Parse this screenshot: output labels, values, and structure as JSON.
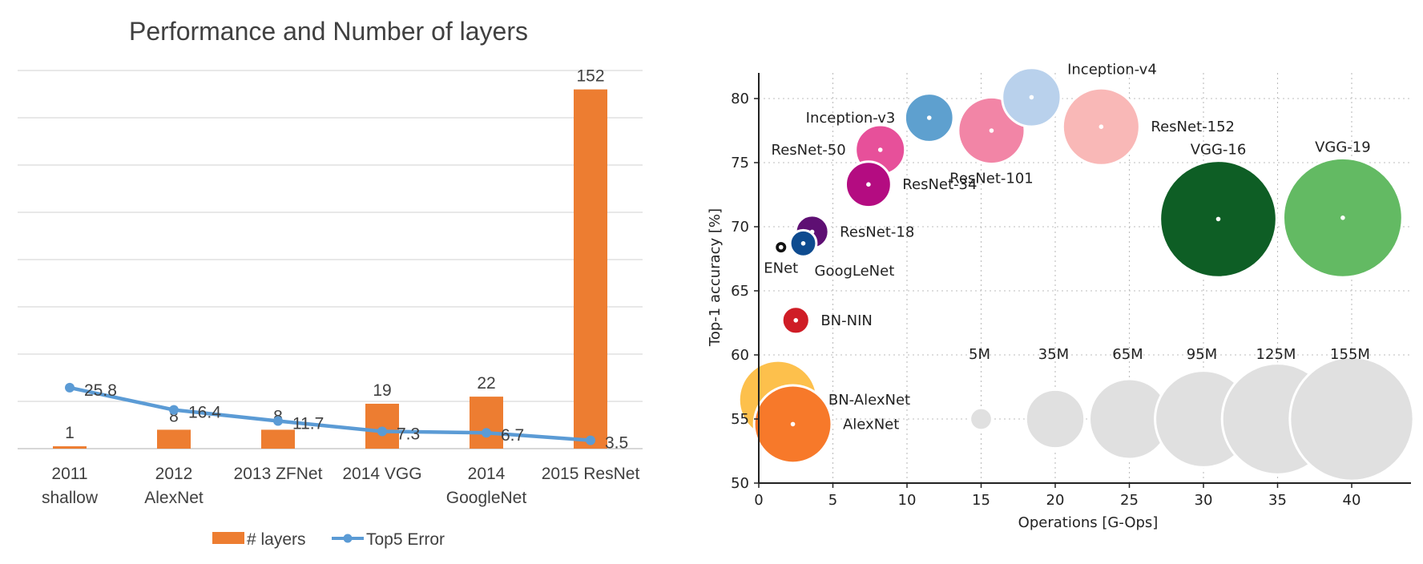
{
  "chart_data": [
    {
      "type": "bar",
      "title": "Performance and Number of layers",
      "categories": [
        [
          "2011",
          "shallow"
        ],
        [
          "2012",
          "AlexNet"
        ],
        [
          "2013 ZFNet"
        ],
        [
          "2014 VGG"
        ],
        [
          "2014",
          "GoogleNet"
        ],
        [
          "2015 ResNet"
        ]
      ],
      "ylim": [
        0,
        160
      ],
      "grid": true,
      "legend_position": "bottom",
      "colors": {
        "bars": "#ED7D31",
        "line": "#5B9BD5",
        "grid": "#D9D9D9",
        "axis": "#BFBFBF"
      },
      "series": [
        {
          "name": "# layers",
          "type": "bar",
          "values": [
            1,
            8,
            8,
            19,
            22,
            152
          ],
          "labels": [
            "1",
            "8",
            "8",
            "19",
            "22",
            "152"
          ]
        },
        {
          "name": "Top5 Error",
          "type": "line",
          "values": [
            25.8,
            16.4,
            11.7,
            7.3,
            6.7,
            3.5
          ],
          "labels": [
            "25.8",
            "16.4",
            "11.7",
            "7.3",
            "6.7",
            "3.5"
          ]
        }
      ]
    },
    {
      "type": "scatter",
      "xlabel": "Operations [G-Ops]",
      "ylabel": "Top-1 accuracy [%]",
      "xlim": [
        0,
        44
      ],
      "ylim": [
        50,
        82
      ],
      "xticks": [
        0,
        5,
        10,
        15,
        20,
        25,
        30,
        35,
        40
      ],
      "yticks": [
        50,
        55,
        60,
        65,
        70,
        75,
        80
      ],
      "grid": true,
      "points": [
        {
          "name": "Inception-v4",
          "x": 18.4,
          "y": 80.1,
          "params_m": 35,
          "color": "#B9D1EC",
          "label_pos": "right-above"
        },
        {
          "name": "Inception-v3",
          "x": 11.5,
          "y": 78.5,
          "params_m": 24,
          "color": "#5EA0CF",
          "label_pos": "left"
        },
        {
          "name": "ResNet-101",
          "x": 15.7,
          "y": 77.5,
          "params_m": 45,
          "color": "#F285A6",
          "label_pos": "below"
        },
        {
          "name": "ResNet-152",
          "x": 23.1,
          "y": 77.8,
          "params_m": 60,
          "color": "#F9B8B7",
          "label_pos": "right"
        },
        {
          "name": "ResNet-50",
          "x": 8.2,
          "y": 76.0,
          "params_m": 25,
          "color": "#E7509A",
          "label_pos": "left"
        },
        {
          "name": "ResNet-34",
          "x": 7.4,
          "y": 73.3,
          "params_m": 21,
          "color": "#B40C81",
          "label_pos": "right"
        },
        {
          "name": "VGG-16",
          "x": 31.0,
          "y": 70.6,
          "params_m": 138,
          "color": "#0E5E25",
          "label_pos": "above"
        },
        {
          "name": "VGG-19",
          "x": 39.4,
          "y": 70.7,
          "params_m": 144,
          "color": "#63BA63",
          "label_pos": "above"
        },
        {
          "name": "ResNet-18",
          "x": 3.6,
          "y": 69.6,
          "params_m": 11,
          "color": "#5E0F73",
          "label_pos": "right"
        },
        {
          "name": "GoogLeNet",
          "x": 3.0,
          "y": 68.7,
          "params_m": 7,
          "color": "#0E4B8F",
          "label_pos": "below-right"
        },
        {
          "name": "ENet",
          "x": 1.5,
          "y": 68.4,
          "params_m": 0.4,
          "color": "#111111",
          "label_pos": "below"
        },
        {
          "name": "BN-NIN",
          "x": 2.5,
          "y": 62.7,
          "params_m": 7.6,
          "color": "#CF1D26",
          "label_pos": "right"
        },
        {
          "name": "BN-AlexNet",
          "x": 1.3,
          "y": 56.5,
          "params_m": 62,
          "color": "#FDC04C",
          "label_pos": "right"
        },
        {
          "name": "AlexNet",
          "x": 2.3,
          "y": 54.6,
          "params_m": 61,
          "color": "#F7792A",
          "label_pos": "right"
        }
      ],
      "size_legend": [
        {
          "label": "5M",
          "x": 15.0,
          "params_m": 5
        },
        {
          "label": "35M",
          "x": 20.0,
          "params_m": 35
        },
        {
          "label": "65M",
          "x": 25.0,
          "params_m": 65
        },
        {
          "label": "95M",
          "x": 30.0,
          "params_m": 95
        },
        {
          "label": "125M",
          "x": 35.0,
          "params_m": 125
        },
        {
          "label": "155M",
          "x": 40.0,
          "params_m": 155
        }
      ],
      "size_legend_y": 55,
      "size_legend_color": "#E0E0E0"
    }
  ]
}
